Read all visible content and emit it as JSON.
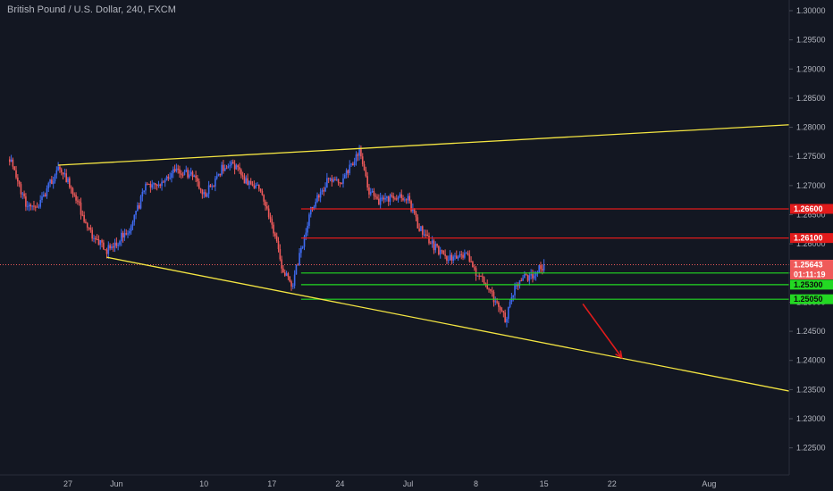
{
  "header": {
    "title": "British Pound / U.S. Dollar, 240, FXCM"
  },
  "colors": {
    "background": "#131722",
    "candle_up": "#3f6bf0",
    "candle_down": "#ef5a5a",
    "trendline": "#f4e542",
    "resistance": "#e21b1b",
    "support": "#23d823",
    "arrow": "#e21b1b",
    "current_price": "#ef5a5a",
    "axis_text": "#b2b5be"
  },
  "chart_data": {
    "type": "candlestick",
    "ylim": [
      1.2225,
      1.3
    ],
    "y_ticks": [
      "1.30000",
      "1.29500",
      "1.29000",
      "1.28500",
      "1.28000",
      "1.27500",
      "1.27000",
      "1.26500",
      "1.26000",
      "1.25500",
      "1.25000",
      "1.24500",
      "1.24000",
      "1.23500",
      "1.23000",
      "1.22500"
    ],
    "x_tick_labels": [
      "27",
      "Jun",
      "10",
      "17",
      "24",
      "Jul",
      "8",
      "15",
      "22",
      "Aug"
    ],
    "current_price": {
      "value": "1.25643",
      "countdown": "01:11:19"
    },
    "price_tags": [
      {
        "value": 1.266,
        "label": "1.26600",
        "kind": "resistance"
      },
      {
        "value": 1.261,
        "label": "1.26100",
        "kind": "resistance"
      },
      {
        "value": 1.255,
        "label": "1.25500",
        "kind": "support"
      },
      {
        "value": 1.253,
        "label": "1.25300",
        "kind": "support"
      },
      {
        "value": 1.2505,
        "label": "1.25050",
        "kind": "support"
      }
    ],
    "close_path": [
      [
        "2019-05-21",
        1.2745
      ],
      [
        "2019-05-22",
        1.2695
      ],
      [
        "2019-05-23",
        1.266
      ],
      [
        "2019-05-24",
        1.2665
      ],
      [
        "2019-05-26",
        1.273
      ],
      [
        "2019-05-27",
        1.271
      ],
      [
        "2019-05-28",
        1.2672
      ],
      [
        "2019-05-29",
        1.2625
      ],
      [
        "2019-05-30",
        1.2605
      ],
      [
        "2019-05-31",
        1.259
      ],
      [
        "2019-06-02",
        1.2618
      ],
      [
        "2019-06-03",
        1.265
      ],
      [
        "2019-06-04",
        1.2705
      ],
      [
        "2019-06-05",
        1.27
      ],
      [
        "2019-06-06",
        1.2715
      ],
      [
        "2019-06-07",
        1.2725
      ],
      [
        "2019-06-09",
        1.272
      ],
      [
        "2019-06-10",
        1.2685
      ],
      [
        "2019-06-11",
        1.2705
      ],
      [
        "2019-06-12",
        1.2732
      ],
      [
        "2019-06-13",
        1.274
      ],
      [
        "2019-06-14",
        1.271
      ],
      [
        "2019-06-16",
        1.269
      ],
      [
        "2019-06-17",
        1.263
      ],
      [
        "2019-06-18",
        1.2565
      ],
      [
        "2019-06-19",
        1.2525
      ],
      [
        "2019-06-20",
        1.259
      ],
      [
        "2019-06-21",
        1.266
      ],
      [
        "2019-06-23",
        1.2715
      ],
      [
        "2019-06-24",
        1.27
      ],
      [
        "2019-06-25",
        1.2728
      ],
      [
        "2019-06-26",
        1.2755
      ],
      [
        "2019-06-27",
        1.269
      ],
      [
        "2019-06-28",
        1.2672
      ],
      [
        "2019-06-30",
        1.2682
      ],
      [
        "2019-07-01",
        1.268
      ],
      [
        "2019-07-02",
        1.263
      ],
      [
        "2019-07-03",
        1.261
      ],
      [
        "2019-07-04",
        1.259
      ],
      [
        "2019-07-05",
        1.2575
      ],
      [
        "2019-07-07",
        1.2578
      ],
      [
        "2019-07-08",
        1.255
      ],
      [
        "2019-07-09",
        1.253
      ],
      [
        "2019-07-10",
        1.25
      ],
      [
        "2019-07-11",
        1.247
      ],
      [
        "2019-07-12",
        1.2522
      ],
      [
        "2019-07-13",
        1.254
      ],
      [
        "2019-07-14",
        1.2548
      ],
      [
        "2019-07-15",
        1.2564
      ]
    ],
    "drawings": {
      "upper_trendline": [
        [
          "2019-05-26",
          1.2735
        ],
        [
          "2019-08-10",
          1.2805
        ]
      ],
      "lower_trendline": [
        [
          "2019-05-31",
          1.2577
        ],
        [
          "2019-08-10",
          1.2345
        ]
      ],
      "resistance_1266_from": "2019-06-20",
      "resistance_1261_from": "2019-06-20",
      "support_1255_from": "2019-06-20",
      "support_1253_from": "2019-06-20",
      "support_12505_from": "2019-06-20",
      "forecast_arrow": [
        [
          "2019-07-19",
          1.2497
        ],
        [
          "2019-07-23",
          1.2405
        ]
      ]
    }
  }
}
